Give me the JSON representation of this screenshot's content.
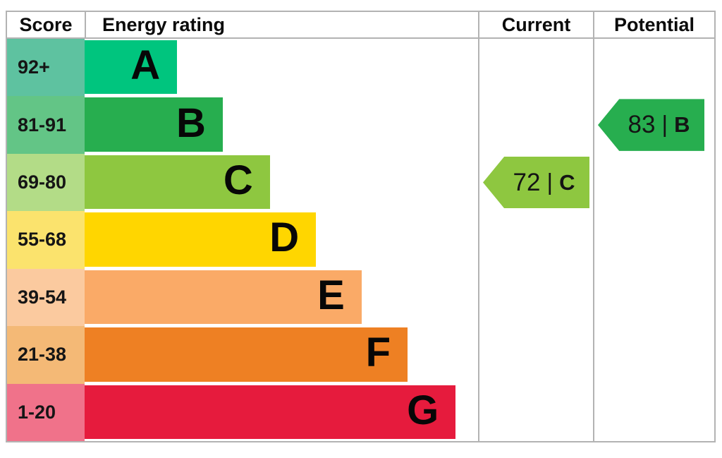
{
  "chart_data": {
    "type": "bar",
    "chart_kind": "epc_energy_rating",
    "columns": [
      "Score",
      "Energy rating",
      "Current",
      "Potential"
    ],
    "bands": [
      {
        "letter": "A",
        "score_range": "92+",
        "band_color": "#00c57e",
        "score_color": "#5ec2a0",
        "width_pct": 23.5
      },
      {
        "letter": "B",
        "score_range": "81-91",
        "band_color": "#27ae4f",
        "score_color": "#63c586",
        "width_pct": 35.1
      },
      {
        "letter": "C",
        "score_range": "69-80",
        "band_color": "#8ec740",
        "score_color": "#b3dc87",
        "width_pct": 47.1
      },
      {
        "letter": "D",
        "score_range": "55-68",
        "band_color": "#ffd600",
        "score_color": "#fbe36d",
        "width_pct": 58.8
      },
      {
        "letter": "E",
        "score_range": "39-54",
        "band_color": "#faaa67",
        "score_color": "#fbca9f",
        "width_pct": 70.4
      },
      {
        "letter": "F",
        "score_range": "21-38",
        "band_color": "#ee8023",
        "score_color": "#f4b976",
        "width_pct": 82.1
      },
      {
        "letter": "G",
        "score_range": "1-20",
        "band_color": "#e61b3d",
        "score_color": "#f0728a",
        "width_pct": 94.3
      }
    ],
    "current": {
      "score": "72",
      "separator": "|",
      "letter": "C",
      "color": "#8ec740"
    },
    "potential": {
      "score": "83",
      "separator": "|",
      "letter": "B",
      "color": "#27ae4f"
    },
    "grid_color": "#b3b3b3",
    "legend_position": "none"
  }
}
